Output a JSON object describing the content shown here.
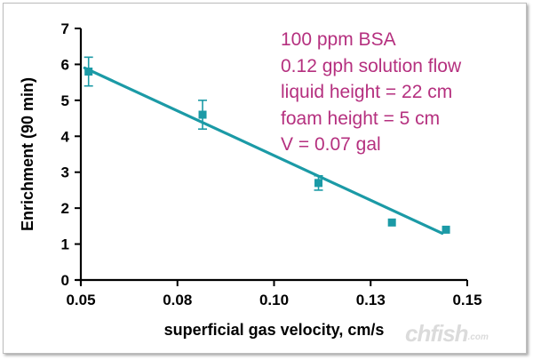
{
  "chart_data": {
    "type": "scatter",
    "xlabel": "superficial gas velocity, cm/s",
    "ylabel": "Enrichment (90 min)",
    "xlim": [
      0.05,
      0.15
    ],
    "ylim": [
      0,
      7
    ],
    "xticks": [
      0.05,
      0.075,
      0.1,
      0.125,
      0.15
    ],
    "xtick_labels": [
      "0.05",
      "0.08",
      "0.10",
      "0.13",
      "0.15"
    ],
    "yticks": [
      0,
      1,
      2,
      3,
      4,
      5,
      6,
      7
    ],
    "ytick_labels": [
      "0",
      "1",
      "2",
      "3",
      "4",
      "5",
      "6",
      "7"
    ],
    "grid": false,
    "series_color": "#1b9aa6",
    "points": [
      {
        "x": 0.052,
        "y": 5.8,
        "err": 0.4
      },
      {
        "x": 0.0815,
        "y": 4.6,
        "err": 0.4
      },
      {
        "x": 0.1115,
        "y": 2.7,
        "err": 0.2
      },
      {
        "x": 0.1305,
        "y": 1.6,
        "err": 0
      },
      {
        "x": 0.1445,
        "y": 1.4,
        "err": 0
      }
    ],
    "fit_line": {
      "x": [
        0.051,
        0.1435
      ],
      "y": [
        5.9,
        1.3
      ]
    },
    "annotations": [
      "100 ppm BSA",
      "0.12 gph solution flow",
      "liquid height = 22 cm",
      "foam height = 5 cm",
      "V = 0.07 gal"
    ]
  },
  "watermark": {
    "main": "chfish",
    "sub": ".com"
  }
}
